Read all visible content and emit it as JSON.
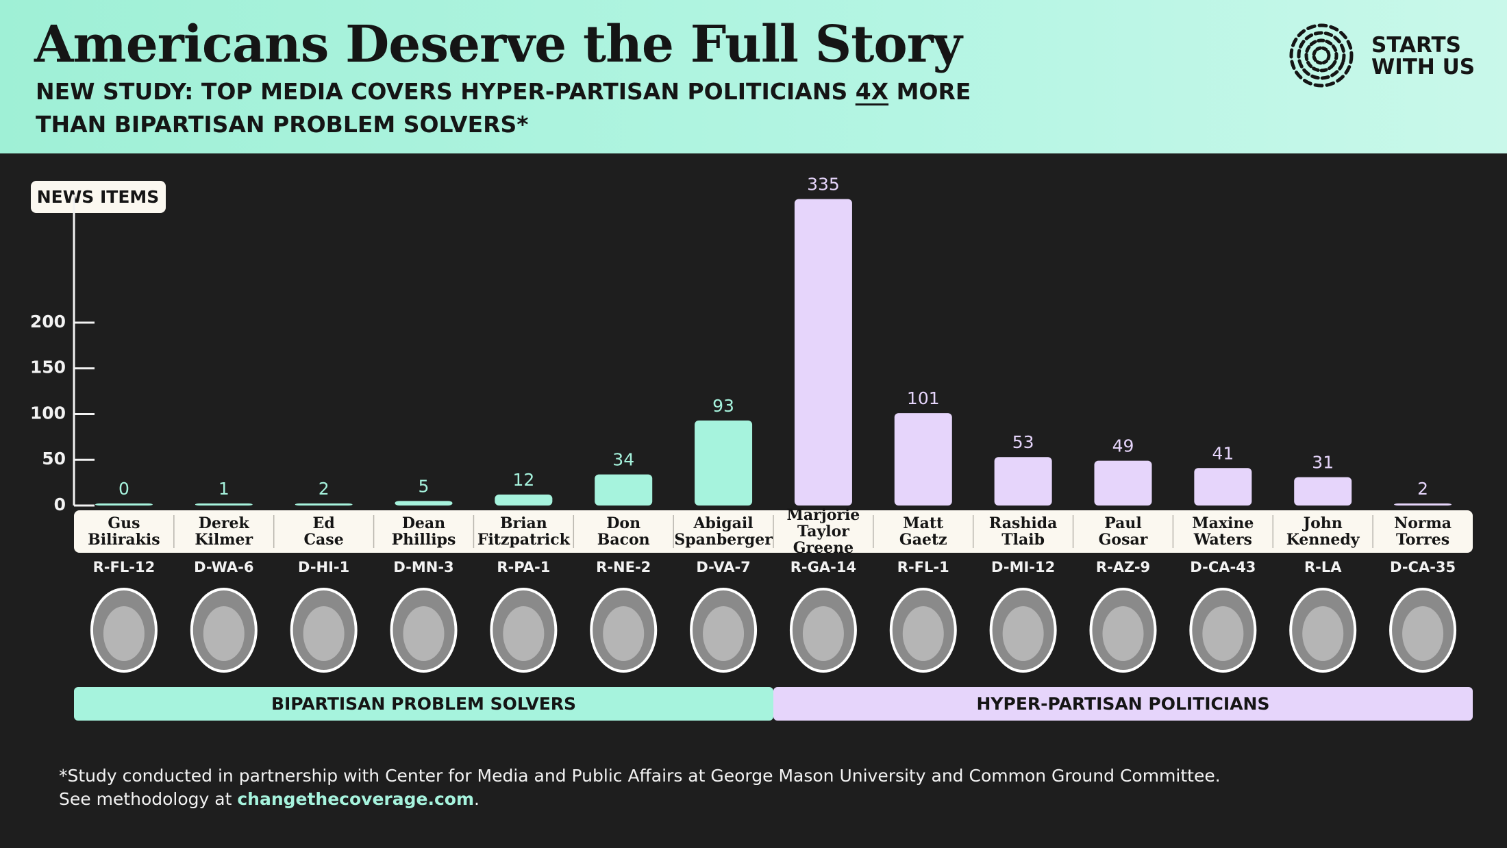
{
  "chart_data": {
    "type": "bar",
    "title": "Americans Deserve the Full Story",
    "subtitle": [
      "NEW STUDY: TOP MEDIA COVERS HYPER-PARTISAN POLITICIANS ",
      "4X",
      " MORE THAN BIPARTISAN PROBLEM SOLVERS*"
    ],
    "logo": "STARTS\nWITH US",
    "y_label": "NEWS ITEMS",
    "categories": [
      "Gus\nBilirakis",
      "Derek\nKilmer",
      "Ed\nCase",
      "Dean\nPhillips",
      "Brian\nFitzpatrick",
      "Don\nBacon",
      "Abigail\nSpanberger",
      "Marjorie\nTaylor Greene",
      "Matt\nGaetz",
      "Rashida\nTlaib",
      "Paul\nGosar",
      "Maxine\nWaters",
      "John\nKennedy",
      "Norma\nTorres"
    ],
    "districts": [
      "R-FL-12",
      "D-WA-6",
      "D-HI-1",
      "D-MN-3",
      "R-PA-1",
      "R-NE-2",
      "D-VA-7",
      "R-GA-14",
      "R-FL-1",
      "D-MI-12",
      "R-AZ-9",
      "D-CA-43",
      "R-LA",
      "D-CA-35"
    ],
    "series": [
      {
        "name": "BIPARTISAN PROBLEM SOLVERS",
        "color": "#a6f3dd",
        "values": [
          0,
          1,
          2,
          5,
          12,
          34,
          93,
          null,
          null,
          null,
          null,
          null,
          null,
          null
        ]
      },
      {
        "name": "HYPER-PARTISAN POLITICIANS",
        "color": "#e6d5fb",
        "values": [
          null,
          null,
          null,
          null,
          null,
          null,
          null,
          335,
          101,
          53,
          49,
          41,
          31,
          2
        ]
      }
    ],
    "ylim": [
      0,
      340
    ],
    "yticks": [
      0,
      50,
      100,
      150,
      200
    ],
    "footnote": {
      "line1": "*Study conducted in partnership with Center for Media and Public Affairs at George Mason University and Common Ground Committee.",
      "line2": "See methodology at ",
      "link": "changethecoverage.com",
      "end": "."
    }
  }
}
